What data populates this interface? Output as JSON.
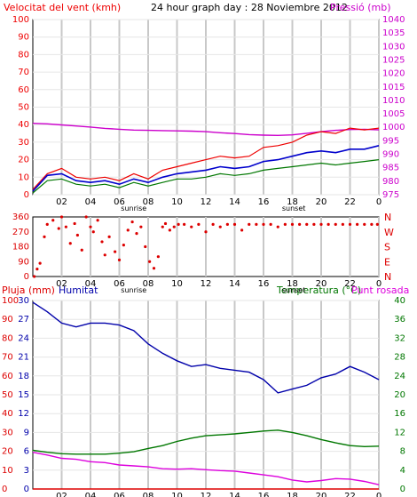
{
  "header": {
    "left_label": "Velocitat del vent (kmh)",
    "center_label": "24 hour graph day : 28 Noviembre 2012",
    "right_label": "Pressió (mb)"
  },
  "colors": {
    "wind": "#ee0000",
    "gust_line": "#ee0000",
    "avg_wind": "#0000cc",
    "green": "#007700",
    "pressure": "#cc00cc",
    "rain": "#dd0000",
    "humidity": "#0000aa",
    "temp": "#007700",
    "dew": "#dd00dd",
    "grid": "#c8c8c8"
  },
  "x_axis": {
    "ticks": [
      "02",
      "04",
      "06",
      "08",
      "10",
      "12",
      "14",
      "16",
      "18",
      "20",
      "22",
      "0"
    ],
    "sunrise": "sunrise",
    "sunset": "sunset"
  },
  "chart_data": [
    {
      "type": "line",
      "title": "24 hour graph day : 28 Noviembre 2012",
      "left_axis_label": "Velocitat del vent (kmh)",
      "right_axis_label": "Pressió (mb)",
      "x_hours": [
        0,
        1,
        2,
        3,
        4,
        5,
        6,
        7,
        8,
        9,
        10,
        11,
        12,
        13,
        14,
        15,
        16,
        17,
        18,
        19,
        20,
        21,
        22,
        23,
        24
      ],
      "ylim_left": [
        0,
        100
      ],
      "ylim_right": [
        975,
        1040
      ],
      "left_ticks": [
        "0",
        "10",
        "20",
        "30",
        "40",
        "50",
        "60",
        "70",
        "80",
        "90",
        "100"
      ],
      "right_ticks": [
        "975",
        "980",
        "985",
        "990",
        "995",
        "1000",
        "1005",
        "1010",
        "1015",
        "1020",
        "1025",
        "1030",
        "1035",
        "1040"
      ],
      "series": [
        {
          "key": "gust",
          "values": [
            3,
            12,
            15,
            10,
            9,
            10,
            8,
            12,
            9,
            14,
            16,
            18,
            20,
            22,
            21,
            22,
            27,
            28,
            30,
            34,
            36,
            35,
            38,
            37,
            38
          ]
        },
        {
          "key": "avg",
          "values": [
            2,
            11,
            12,
            8,
            7,
            8,
            6,
            9,
            7,
            10,
            12,
            13,
            14,
            16,
            15,
            16,
            19,
            20,
            22,
            24,
            25,
            24,
            26,
            26,
            28
          ]
        },
        {
          "key": "min",
          "values": [
            1,
            8,
            9,
            6,
            5,
            6,
            4,
            7,
            5,
            7,
            9,
            9,
            10,
            12,
            11,
            12,
            14,
            15,
            16,
            17,
            18,
            17,
            18,
            19,
            20
          ]
        },
        {
          "key": "pressure",
          "values": [
            1001.5,
            1001.3,
            1000.9,
            1000.5,
            1000.1,
            999.6,
            999.3,
            999.0,
            998.9,
            998.8,
            998.7,
            998.6,
            998.4,
            998.0,
            997.7,
            997.3,
            997.1,
            997.0,
            997.2,
            997.8,
            998.4,
            998.9,
            999.2,
            999.3,
            999.1
          ]
        }
      ]
    },
    {
      "type": "scatter",
      "title": "",
      "y_ticks": [
        "0",
        "90",
        "180",
        "270",
        "360"
      ],
      "y_right_ticks": [
        "N",
        "W",
        "S",
        "E",
        "N"
      ],
      "ylim": [
        0,
        360
      ],
      "x_hours": [
        0.1,
        0.3,
        0.5,
        0.8,
        1.0,
        1.4,
        1.8,
        2.0,
        2.3,
        2.6,
        2.9,
        3.1,
        3.4,
        3.7,
        4.0,
        4.2,
        4.5,
        4.8,
        5.0,
        5.3,
        5.7,
        6.0,
        6.3,
        6.6,
        6.9,
        7.2,
        7.5,
        7.8,
        8.1,
        8.4,
        8.7,
        9.0,
        9.2,
        9.5,
        9.8,
        10.1,
        10.5,
        11.0,
        11.5,
        12.0,
        12.5,
        13.0,
        13.5,
        14.0,
        14.5,
        15.0,
        15.5,
        16.0,
        16.5,
        17.0,
        17.5,
        18.0,
        18.5,
        19.0,
        19.5,
        20.0,
        20.5,
        21.0,
        21.5,
        22.0,
        22.5,
        23.0,
        23.5,
        23.9
      ],
      "values": [
        0,
        45,
        80,
        240,
        315,
        340,
        290,
        360,
        300,
        200,
        320,
        250,
        160,
        360,
        300,
        270,
        340,
        210,
        130,
        240,
        150,
        100,
        190,
        280,
        330,
        260,
        300,
        180,
        90,
        50,
        120,
        300,
        320,
        280,
        300,
        315,
        315,
        300,
        315,
        270,
        315,
        300,
        315,
        315,
        280,
        315,
        315,
        315,
        315,
        300,
        315,
        315,
        315,
        315,
        315,
        315,
        315,
        315,
        315,
        315,
        315,
        315,
        315,
        315
      ]
    },
    {
      "type": "line",
      "left_axis_label": "Pluja (mm)",
      "left2_axis_label": "Humitat",
      "right_axis_label": "Temperatura (°C)",
      "right2_axis_label": "Punt rosada",
      "x_hours": [
        0,
        1,
        2,
        3,
        4,
        5,
        6,
        7,
        8,
        9,
        10,
        11,
        12,
        13,
        14,
        15,
        16,
        17,
        18,
        19,
        20,
        21,
        22,
        23,
        24
      ],
      "rain_ticks": [
        "0",
        "10",
        "20",
        "30",
        "40",
        "50",
        "60",
        "70",
        "80",
        "90",
        "100"
      ],
      "hum_ticks": [
        "0",
        "3",
        "6",
        "9",
        "12",
        "15",
        "18",
        "21",
        "24",
        "27",
        "30"
      ],
      "temp_ticks": [
        "0",
        "4",
        "8",
        "12",
        "16",
        "20",
        "24",
        "28",
        "32",
        "36",
        "40"
      ],
      "ylim_rain": [
        0,
        30
      ],
      "ylim_hum": [
        0,
        100
      ],
      "ylim_temp": [
        0,
        40
      ],
      "series": [
        {
          "key": "rain",
          "values": [
            0,
            0,
            0,
            0,
            0,
            0,
            0,
            0,
            0,
            0,
            0,
            0,
            0,
            0,
            0,
            0,
            0,
            0,
            0,
            0,
            0,
            0,
            0,
            0,
            0
          ]
        },
        {
          "key": "humidity",
          "values": [
            99,
            94,
            88,
            86,
            88,
            88,
            87,
            84,
            77,
            72,
            68,
            65,
            66,
            64,
            63,
            62,
            58,
            51,
            53,
            55,
            59,
            61,
            65,
            62,
            58
          ]
        },
        {
          "key": "temperature",
          "values": [
            8.2,
            7.8,
            7.5,
            7.4,
            7.4,
            7.4,
            7.6,
            7.9,
            8.6,
            9.2,
            10.1,
            10.8,
            11.3,
            11.5,
            11.7,
            12.0,
            12.3,
            12.5,
            12.0,
            11.3,
            10.5,
            9.8,
            9.2,
            9.0,
            9.1
          ]
        },
        {
          "key": "dew",
          "values": [
            7.8,
            7.2,
            6.5,
            6.3,
            5.8,
            5.6,
            5.1,
            4.9,
            4.7,
            4.3,
            4.2,
            4.3,
            4.1,
            3.9,
            3.8,
            3.4,
            3.0,
            2.6,
            1.9,
            1.5,
            1.8,
            2.2,
            2.1,
            1.6,
            0.9
          ]
        }
      ]
    }
  ],
  "lower_header": {
    "left_label": "Pluja (mm)",
    "left2_label": "Humitat",
    "right_label": "Temperatura (°C)",
    "right2_label": "Punt rosada"
  }
}
